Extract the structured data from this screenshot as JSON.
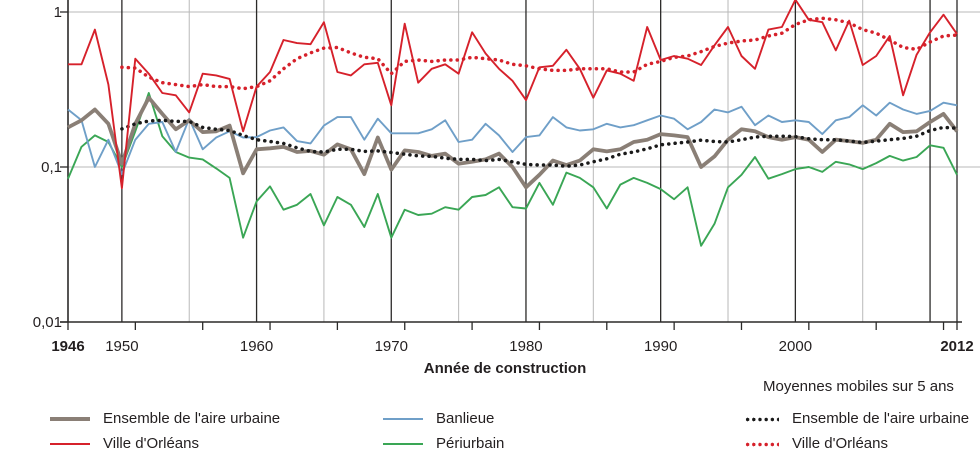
{
  "axis": {
    "x_title": "Année de construction",
    "colors": {
      "grid_light": "#b9b9b9",
      "grid_dark": "#2b2a29",
      "text": "#231f20"
    }
  },
  "legend": {
    "moving_avg_header": "Moyennes mobiles sur 5 ans",
    "items": [
      {
        "label": "Ensemble de l'aire urbaine",
        "series": 0
      },
      {
        "label": "Ville d'Orléans",
        "series": 1
      },
      {
        "label": "Banlieue",
        "series": 2
      },
      {
        "label": "Périurbain",
        "series": 3
      },
      {
        "label": "Ensemble de l'aire urbaine",
        "series": 4
      },
      {
        "label": "Ville d'Orléans",
        "series": 5
      }
    ]
  },
  "chart_data": {
    "type": "line",
    "title": "",
    "xlabel": "Année de construction",
    "ylabel": "",
    "y_scale": "log",
    "ylim": [
      0.01,
      1.2
    ],
    "xlim": [
      1946,
      2012
    ],
    "grid": {
      "vertical_major_years": [
        1950,
        1960,
        1970,
        1980,
        1990,
        2000,
        2010
      ],
      "vertical_minor_years": [
        1955,
        1965,
        1975,
        1985,
        1995,
        2005
      ],
      "horizontal_values": [
        1,
        0.1
      ],
      "x_tick_step": 5
    },
    "x_tick_labels": [
      {
        "year": 1946,
        "label": "1946",
        "bold": true
      },
      {
        "year": 1950,
        "label": "1950",
        "bold": false
      },
      {
        "year": 1960,
        "label": "1960",
        "bold": false
      },
      {
        "year": 1970,
        "label": "1970",
        "bold": false
      },
      {
        "year": 1980,
        "label": "1980",
        "bold": false
      },
      {
        "year": 1990,
        "label": "1990",
        "bold": false
      },
      {
        "year": 2000,
        "label": "2000",
        "bold": false
      },
      {
        "year": 2012,
        "label": "2012",
        "bold": true
      }
    ],
    "y_tick_labels": [
      {
        "value": 1,
        "label": "1"
      },
      {
        "value": 0.1,
        "label": "0,1"
      },
      {
        "value": 0.01,
        "label": "0,01"
      }
    ],
    "legend_position": "bottom",
    "series": [
      {
        "name": "Ensemble de l'aire urbaine",
        "color": "#8a7f76",
        "style": "solid",
        "width": 3.8,
        "start_year": 1946,
        "values": [
          0.18,
          0.2,
          0.235,
          0.19,
          0.105,
          0.19,
          0.28,
          0.22,
          0.175,
          0.2,
          0.168,
          0.17,
          0.185,
          0.091,
          0.13,
          0.132,
          0.135,
          0.125,
          0.127,
          0.12,
          0.14,
          0.13,
          0.09,
          0.155,
          0.096,
          0.128,
          0.125,
          0.118,
          0.122,
          0.105,
          0.108,
          0.112,
          0.122,
          0.1,
          0.074,
          0.089,
          0.11,
          0.103,
          0.11,
          0.13,
          0.126,
          0.13,
          0.145,
          0.15,
          0.163,
          0.16,
          0.156,
          0.1,
          0.117,
          0.15,
          0.175,
          0.17,
          0.156,
          0.15,
          0.156,
          0.15,
          0.125,
          0.15,
          0.147,
          0.143,
          0.15,
          0.19,
          0.168,
          0.17,
          0.195,
          0.22,
          0.17
        ]
      },
      {
        "name": "Ville d'Orléans",
        "color": "#d6212b",
        "style": "solid",
        "width": 1.9,
        "start_year": 1946,
        "values": [
          0.46,
          0.46,
          0.77,
          0.34,
          0.073,
          0.5,
          0.4,
          0.3,
          0.29,
          0.225,
          0.4,
          0.39,
          0.37,
          0.17,
          0.33,
          0.41,
          0.66,
          0.63,
          0.62,
          0.86,
          0.41,
          0.39,
          0.46,
          0.47,
          0.25,
          0.84,
          0.35,
          0.43,
          0.46,
          0.4,
          0.74,
          0.54,
          0.43,
          0.36,
          0.27,
          0.44,
          0.45,
          0.57,
          0.43,
          0.28,
          0.42,
          0.4,
          0.36,
          0.8,
          0.49,
          0.52,
          0.5,
          0.455,
          0.61,
          0.8,
          0.52,
          0.43,
          0.77,
          0.8,
          1.2,
          0.89,
          0.86,
          0.565,
          0.88,
          0.455,
          0.52,
          0.7,
          0.29,
          0.53,
          0.74,
          0.96,
          0.72
        ]
      },
      {
        "name": "Banlieue",
        "color": "#6f9fc8",
        "style": "solid",
        "width": 1.9,
        "start_year": 1946,
        "values": [
          0.235,
          0.2,
          0.1,
          0.15,
          0.09,
          0.15,
          0.19,
          0.195,
          0.125,
          0.205,
          0.13,
          0.155,
          0.17,
          0.155,
          0.156,
          0.172,
          0.18,
          0.147,
          0.142,
          0.185,
          0.21,
          0.21,
          0.15,
          0.205,
          0.165,
          0.165,
          0.165,
          0.175,
          0.2,
          0.145,
          0.15,
          0.19,
          0.16,
          0.125,
          0.156,
          0.16,
          0.21,
          0.18,
          0.172,
          0.175,
          0.19,
          0.18,
          0.186,
          0.2,
          0.215,
          0.205,
          0.175,
          0.195,
          0.235,
          0.225,
          0.245,
          0.186,
          0.215,
          0.195,
          0.2,
          0.195,
          0.163,
          0.2,
          0.21,
          0.25,
          0.215,
          0.26,
          0.235,
          0.22,
          0.23,
          0.26,
          0.25
        ]
      },
      {
        "name": "Périurbain",
        "color": "#3aa655",
        "style": "solid",
        "width": 1.9,
        "start_year": 1946,
        "values": [
          0.084,
          0.135,
          0.16,
          0.145,
          0.1,
          0.17,
          0.3,
          0.158,
          0.125,
          0.115,
          0.112,
          0.098,
          0.085,
          0.035,
          0.06,
          0.075,
          0.053,
          0.057,
          0.067,
          0.042,
          0.064,
          0.057,
          0.041,
          0.067,
          0.035,
          0.053,
          0.049,
          0.05,
          0.055,
          0.053,
          0.064,
          0.066,
          0.074,
          0.055,
          0.054,
          0.079,
          0.057,
          0.092,
          0.085,
          0.074,
          0.054,
          0.077,
          0.085,
          0.079,
          0.072,
          0.062,
          0.074,
          0.031,
          0.043,
          0.074,
          0.089,
          0.116,
          0.084,
          0.09,
          0.097,
          0.1,
          0.093,
          0.108,
          0.104,
          0.097,
          0.106,
          0.118,
          0.11,
          0.116,
          0.138,
          0.133,
          0.089
        ]
      },
      {
        "name": "Ensemble de l'aire urbaine — moyenne mobile sur 5 ans",
        "color": "#1a1a1a",
        "style": "dotted",
        "width": 3.5,
        "start_year": 1950,
        "values": [
          0.176,
          0.19,
          0.198,
          0.2,
          0.197,
          0.197,
          0.18,
          0.175,
          0.172,
          0.16,
          0.15,
          0.146,
          0.142,
          0.133,
          0.126,
          0.125,
          0.13,
          0.13,
          0.126,
          0.127,
          0.124,
          0.121,
          0.118,
          0.117,
          0.114,
          0.112,
          0.112,
          0.11,
          0.112,
          0.108,
          0.104,
          0.103,
          0.103,
          0.101,
          0.103,
          0.108,
          0.113,
          0.121,
          0.125,
          0.131,
          0.139,
          0.142,
          0.145,
          0.149,
          0.146,
          0.145,
          0.15,
          0.156,
          0.158,
          0.158,
          0.157,
          0.152,
          0.15,
          0.15,
          0.147,
          0.144,
          0.147,
          0.15,
          0.153,
          0.158,
          0.172,
          0.18,
          0.178
        ]
      },
      {
        "name": "Ville d'Orléans — moyenne mobile sur 5 ans",
        "color": "#d6212b",
        "style": "dotted",
        "width": 3.5,
        "start_year": 1950,
        "values": [
          0.44,
          0.435,
          0.38,
          0.35,
          0.34,
          0.33,
          0.34,
          0.33,
          0.33,
          0.32,
          0.33,
          0.36,
          0.43,
          0.5,
          0.545,
          0.585,
          0.59,
          0.545,
          0.51,
          0.5,
          0.4,
          0.48,
          0.49,
          0.48,
          0.49,
          0.49,
          0.51,
          0.5,
          0.49,
          0.46,
          0.45,
          0.43,
          0.42,
          0.42,
          0.43,
          0.43,
          0.43,
          0.41,
          0.41,
          0.46,
          0.48,
          0.51,
          0.52,
          0.555,
          0.6,
          0.63,
          0.65,
          0.66,
          0.7,
          0.73,
          0.83,
          0.89,
          0.91,
          0.89,
          0.85,
          0.77,
          0.73,
          0.66,
          0.59,
          0.575,
          0.64,
          0.7,
          0.71
        ]
      }
    ]
  }
}
